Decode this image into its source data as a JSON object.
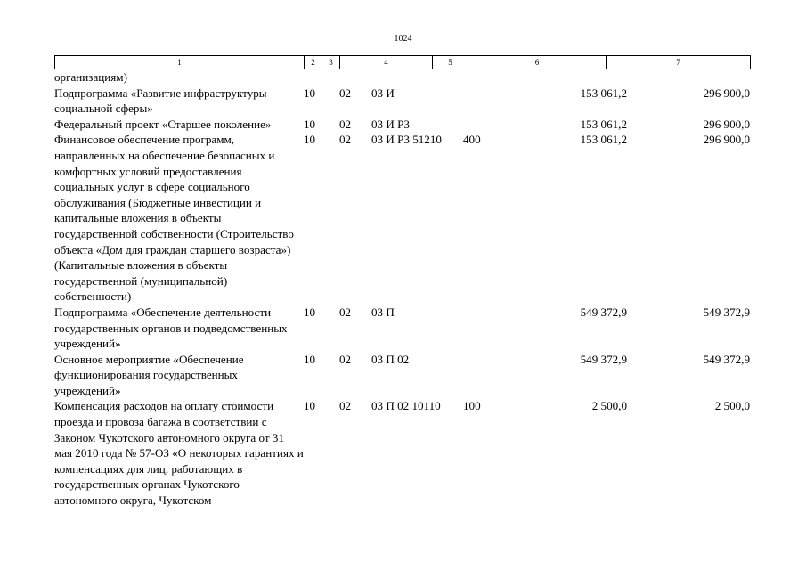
{
  "page_number": "1024",
  "header_columns": [
    "1",
    "2",
    "3",
    "4",
    "5",
    "6",
    "7"
  ],
  "continuation_text": "организациям)",
  "rows": [
    {
      "name": "Подпрограмма «Развитие инфраструктуры социальной сферы»",
      "rz": "10",
      "pr": "02",
      "csr": "03 И",
      "vr": "",
      "v6": "153 061,2",
      "v7": "296 900,0"
    },
    {
      "name": "Федеральный проект «Старшее поколение»",
      "rz": "10",
      "pr": "02",
      "csr": "03 И Р3",
      "vr": "",
      "v6": "153 061,2",
      "v7": "296 900,0"
    },
    {
      "name": "Финансовое обеспечение программ, направленных на обеспечение безопасных и комфортных условий предоставления социальных услуг в сфере социального обслуживания (Бюджетные инвестиции и капитальные вложения в объекты государственной собственности (Строительство объекта «Дом для граждан старшего возраста») (Капитальные вложения в объекты государственной (муниципальной) собственности)",
      "rz": "10",
      "pr": "02",
      "csr": "03 И Р3 51210",
      "vr": "400",
      "v6": "153 061,2",
      "v7": "296 900,0"
    },
    {
      "name": "Подпрограмма «Обеспечение деятельности государственных органов и подведомственных учреждений»",
      "rz": "10",
      "pr": "02",
      "csr": "03 П",
      "vr": "",
      "v6": "549 372,9",
      "v7": "549 372,9"
    },
    {
      "name": "Основное мероприятие «Обеспечение функционирования государственных учреждений»",
      "rz": "10",
      "pr": "02",
      "csr": "03 П 02",
      "vr": "",
      "v6": "549 372,9",
      "v7": "549 372,9"
    },
    {
      "name": "Компенсация расходов на оплату стоимости проезда и провоза багажа в соответствии с Законом Чукотского автономного округа от 31 мая 2010 года № 57-ОЗ «О некоторых гарантиях и компенсациях для лиц, работающих в государственных органах Чукотского автономного округа, Чукотском",
      "rz": "10",
      "pr": "02",
      "csr": "03 П 02 10110",
      "vr": "100",
      "v6": "2 500,0",
      "v7": "2 500,0"
    }
  ]
}
